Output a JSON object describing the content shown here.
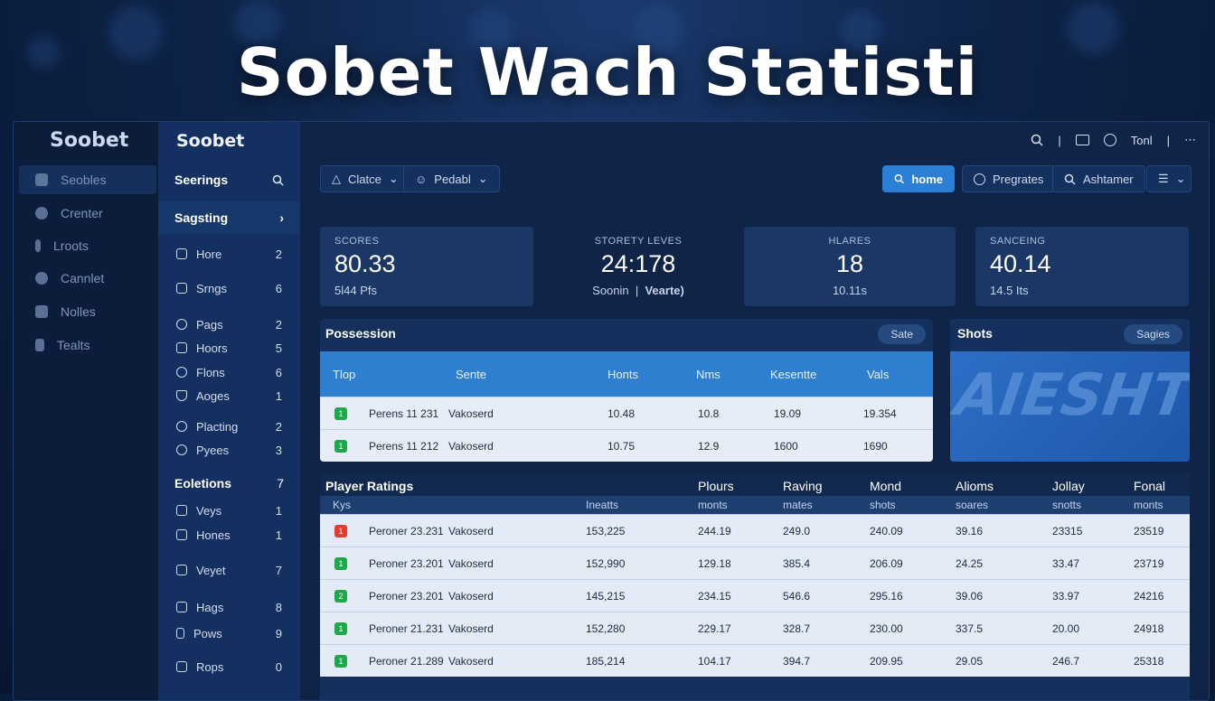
{
  "hero_title": "Sobet Wach Statisti",
  "rail": {
    "brand": "Soobet",
    "items": [
      "Seobles",
      "Crenter",
      "Lroots",
      "Cannlet",
      "Nolles",
      "Tealts"
    ]
  },
  "sidebar": {
    "brand": "Soobet",
    "sections": [
      {
        "label": "Seerings",
        "icon": "search-icon"
      },
      {
        "label": "Sagsting",
        "icon": "chevron-right-icon"
      }
    ],
    "items": [
      {
        "label": "Hore",
        "count": "2"
      },
      {
        "label": "Srngs",
        "count": "6"
      },
      {
        "label": "Pags",
        "count": "2"
      },
      {
        "label": "Hoors",
        "count": "5"
      },
      {
        "label": "Flons",
        "count": "6"
      },
      {
        "label": "Aoges",
        "count": "1"
      },
      {
        "label": "Placting",
        "count": "2"
      },
      {
        "label": "Pyees",
        "count": "3"
      }
    ],
    "section3": {
      "label": "Eoletions",
      "count": "7"
    },
    "items2": [
      {
        "label": "Veys",
        "count": "1"
      },
      {
        "label": "Hones",
        "count": "1"
      },
      {
        "label": "Veyet",
        "count": "7"
      },
      {
        "label": "Hags",
        "count": "8"
      },
      {
        "label": "Pows",
        "count": "9"
      },
      {
        "label": "Rops",
        "count": "0"
      }
    ]
  },
  "topbar": {
    "user": "Tonl"
  },
  "toolbar": {
    "filter1": "Clatce",
    "filter2": "Pedabl",
    "home": "home",
    "progress": "Pregrates",
    "search": "Ashtamer"
  },
  "cards": [
    {
      "label": "SCORES",
      "value": "80.33",
      "sub": "5l44 Pfs"
    },
    {
      "label": "STORETY LEVES",
      "value": "24:178",
      "sub_a": "Soonin",
      "sub_b": "Vearte)"
    },
    {
      "label": "HLARES",
      "value": "18",
      "sub": "10.11s"
    },
    {
      "label": "SANCEING",
      "value": "40.14",
      "sub": "14.5 Its"
    }
  ],
  "possession": {
    "title": "Possession",
    "pill": "Sate",
    "headers": [
      "Tlop",
      "Sente",
      "Honts",
      "Nms",
      "Kesentte",
      "Vals"
    ],
    "rows": [
      {
        "badge": "1",
        "name": "Perens 11 231",
        "team": "Vakoserd",
        "c1": "10.48",
        "c2": "10.8",
        "c3": "19.09",
        "c4": "19.354"
      },
      {
        "badge": "1",
        "name": "Perens 11 212",
        "team": "Vakoserd",
        "c1": "10.75",
        "c2": "12.9",
        "c3": "1600",
        "c4": "1690"
      }
    ]
  },
  "shots": {
    "title": "Shots",
    "pill": "Sagies",
    "image_text": "AIESHT"
  },
  "ratings": {
    "title": "Player Ratings",
    "headers": [
      "Plours",
      "Raving",
      "Mond",
      "Alioms",
      "Jollay",
      "Fonal"
    ],
    "sub_headers": [
      "Kys",
      "Ineatts",
      "monts",
      "mates",
      "shots",
      "soares",
      "snotts",
      "monts"
    ],
    "rows": [
      {
        "badge": "1",
        "red": true,
        "name": "Peroner 23.231",
        "team": "Vakoserd",
        "v": [
          "153,225",
          "244.19",
          "249.0",
          "240.09",
          "39.16",
          "23315",
          "23519"
        ]
      },
      {
        "badge": "1",
        "red": false,
        "name": "Peroner 23.201",
        "team": "Vakoserd",
        "v": [
          "152,990",
          "129.18",
          "385.4",
          "206.09",
          "24.25",
          "33.47",
          "23719"
        ]
      },
      {
        "badge": "2",
        "red": false,
        "name": "Peroner 23.201",
        "team": "Vakoserd",
        "v": [
          "145,215",
          "234.15",
          "546.6",
          "295.16",
          "39.06",
          "33.97",
          "24216"
        ]
      },
      {
        "badge": "1",
        "red": false,
        "name": "Peroner 21.231",
        "team": "Vakoserd",
        "v": [
          "152,280",
          "229.17",
          "328.7",
          "230.00",
          "337.5",
          "20.00",
          "24918"
        ]
      },
      {
        "badge": "1",
        "red": false,
        "name": "Peroner 21.289",
        "team": "Vakoserd",
        "v": [
          "185,214",
          "104.17",
          "394.7",
          "209.95",
          "29.05",
          "246.7",
          "25318"
        ]
      }
    ]
  }
}
